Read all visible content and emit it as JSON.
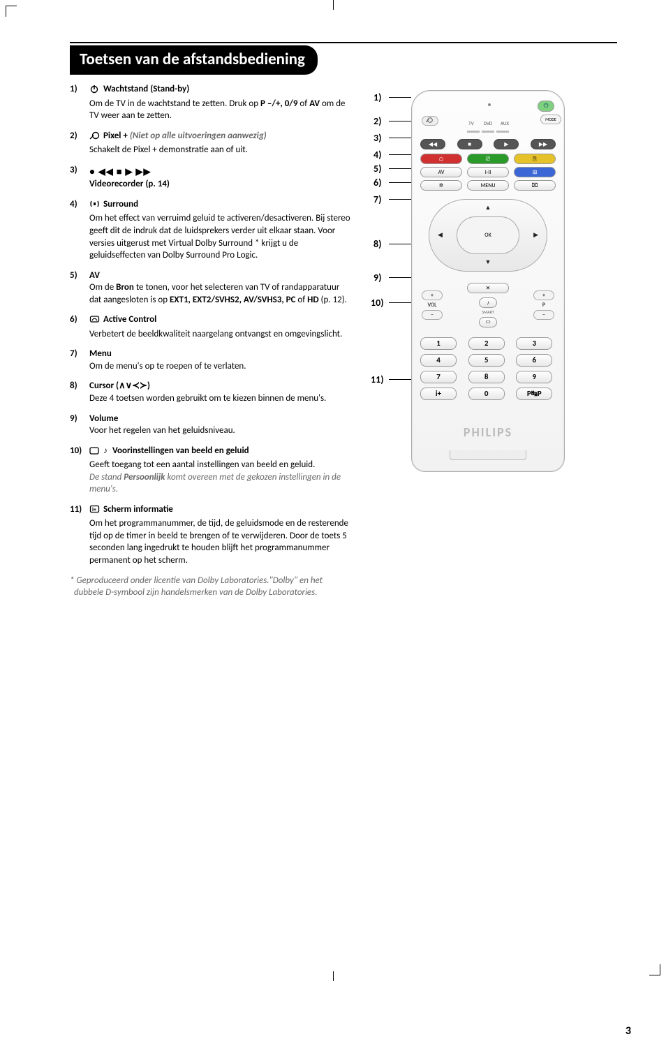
{
  "page": {
    "title": "Toetsen van de afstandsbediening",
    "page_number": "3"
  },
  "colors": {
    "black": "#000000",
    "white": "#ffffff",
    "grey_text": "#666666",
    "pill_blue": "#3a66d6",
    "pill_red": "#d03030",
    "pill_green": "#2a9a2a",
    "pill_yellow": "#e6c22a",
    "power_green": "#7fd07f"
  },
  "items": [
    {
      "n": "1)",
      "icon": "power",
      "title": "Wachtstand (Stand-by)",
      "body_html": "Om de TV in de wachtstand te zetten. Druk op <b>P –/+, 0/9</b> of <b>AV</b> om de TV weer aan te zetten."
    },
    {
      "n": "2)",
      "icon": "pixel",
      "title": "Pixel +",
      "title_suffix_italic": " (Niet op alle uitvoeringen aanwezig)",
      "body_html": "Schakelt de Pixel + demonstratie aan of uit."
    },
    {
      "n": "3)",
      "icon": "transport",
      "title": "",
      "body_html": "<b>Videorecorder (p. 14)</b>"
    },
    {
      "n": "4)",
      "icon": "surround",
      "title": "Surround",
      "body_html": "Om het effect van verruimd geluid te activeren/desactiveren. Bij stereo geeft dit de indruk dat de luidsprekers verder uit elkaar staan. Voor versies uitgerust met Virtual Dolby Surround * krijgt u de geluidseffecten van Dolby Surround Pro Logic."
    },
    {
      "n": "5)",
      "icon": "",
      "title": "AV",
      "body_html": "Om de <b>Bron</b> te tonen, voor het selecteren van TV of randapparatuur dat aangesloten is op  <b>EXT1, EXT2/SVHS2, AV/SVHS3, PC</b> of <b>HD</b> (p. 12)."
    },
    {
      "n": "6)",
      "icon": "active",
      "title": "Active Control",
      "body_html": "Verbetert de beeldkwaliteit naargelang ontvangst en omgevingslicht."
    },
    {
      "n": "7)",
      "icon": "",
      "title": "Menu",
      "body_html": "Om de menu's   op te roepen of te verlaten."
    },
    {
      "n": "8)",
      "icon": "",
      "title": "Cursor (∧∨≺≻)",
      "body_html": "Deze 4 toetsen worden gebruikt om te kiezen binnen de menu's."
    },
    {
      "n": "9)",
      "icon": "",
      "title": "Volume",
      "body_html": "Voor het regelen van het geluidsniveau."
    },
    {
      "n": "10)",
      "icon": "smart",
      "title": "Voorinstellingen van beeld en geluid",
      "body_html": "Geeft toegang tot een aantal instellingen van beeld en geluid.",
      "tail_italic": "De stand <b>Persoonlijk</b> komt overeen met de gekozen instellingen in de menu's."
    },
    {
      "n": "11)",
      "icon": "info",
      "title": "Scherm informatie",
      "body_html": "Om het programmanummer, de tijd, de geluidsmode en de resterende tijd op de timer in beeld te brengen of te verwijderen. Door de toets 5 seconden lang ingedrukt te houden blijft het programmanummer permanent op het scherm."
    }
  ],
  "footnote": "* Geproduceerd onder licentie van Dolby Laboratories.\"Dolby\" en het dubbele D-symbool zijn handelsmerken van de Dolby Laboratories.",
  "remote": {
    "sources": [
      "TV",
      "DVD",
      "AUX"
    ],
    "mode": "MODE",
    "row_icons_mid": [
      "AV",
      "I-II",
      "⊞"
    ],
    "row_icons_low": [
      "✲",
      "MENU",
      "⌧"
    ],
    "ok": "OK",
    "vol_label": "VOL",
    "p_label": "P",
    "smart_label": "SMART",
    "mute": "✕",
    "numbers": [
      "1",
      "2",
      "3",
      "4",
      "5",
      "6",
      "7",
      "8",
      "9",
      "",
      "0",
      ""
    ],
    "info": "i+",
    "swap": "P↹P",
    "brand": "PHILIPS"
  },
  "callouts": [
    "1)",
    "2)",
    "3)",
    "4)",
    "5)",
    "6)",
    "7)",
    "8)",
    "9)",
    "10)",
    "11)"
  ]
}
